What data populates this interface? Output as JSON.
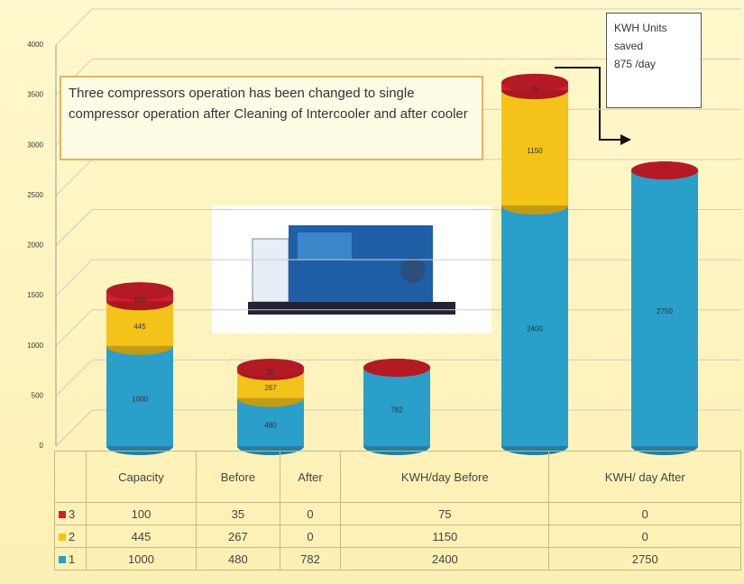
{
  "chart_data": {
    "type": "cylinder-stacked-bar",
    "categories": [
      "Capacity",
      "Before",
      "After",
      "KWH/day Before",
      "KWH/ day After"
    ],
    "series": [
      {
        "name": "1",
        "color": "#2a9fc9",
        "values": [
          1000,
          480,
          782,
          2400,
          2750
        ]
      },
      {
        "name": "2",
        "color": "#f3c31a",
        "values": [
          445,
          267,
          0,
          1150,
          0
        ]
      },
      {
        "name": "3",
        "color": "#d21f2b",
        "values": [
          100,
          35,
          0,
          75,
          0
        ]
      }
    ],
    "ylim": [
      0,
      4000
    ],
    "yticks": [
      0,
      500,
      1000,
      1500,
      2000,
      2500,
      3000,
      3500,
      4000
    ],
    "grid": true,
    "annotations": [
      "Three compressors operation has been changed to single compressor operation after Cleaning of Intercooler and after cooler"
    ],
    "callout": [
      "KWH Units",
      "saved",
      "875  /day"
    ]
  }
}
